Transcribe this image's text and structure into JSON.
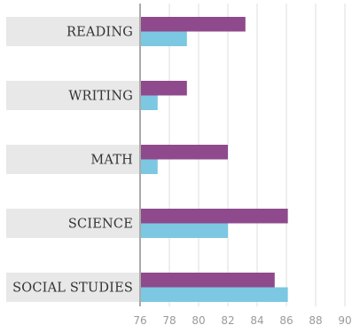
{
  "chart_data": {
    "type": "bar",
    "orientation": "horizontal",
    "categories": [
      "READING",
      "WRITING",
      "MATH",
      "SCIENCE",
      "SOCIAL STUDIES"
    ],
    "series": [
      {
        "values": [
          83.2,
          79.2,
          82.0,
          86.1,
          85.2
        ],
        "color": "#8e4a8c"
      },
      {
        "values": [
          79.2,
          77.2,
          77.2,
          82.0,
          86.1
        ],
        "color": "#7cc7e2"
      }
    ],
    "xlim": [
      76,
      90
    ],
    "x_ticks": [
      "76",
      "78",
      "80",
      "82",
      "84",
      "86",
      "88",
      "90"
    ],
    "grid": "vertical",
    "label_band_color": "#e8e8e8",
    "axis_color": "#aaaaaa",
    "grid_color": "#dddddd"
  }
}
